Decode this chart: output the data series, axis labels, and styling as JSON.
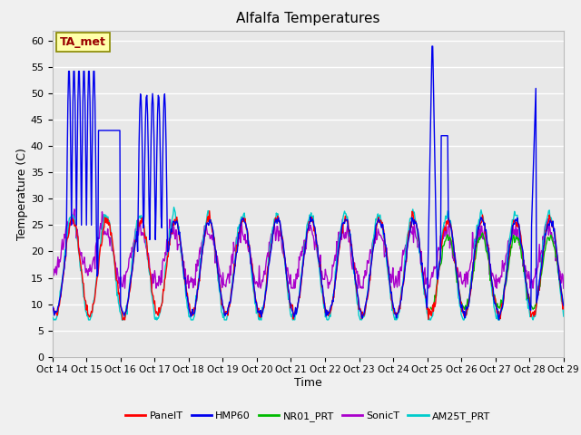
{
  "title": "Alfalfa Temperatures",
  "xlabel": "Time",
  "ylabel": "Temperature (C)",
  "ylim": [
    0,
    62
  ],
  "yticks": [
    0,
    5,
    10,
    15,
    20,
    25,
    30,
    35,
    40,
    45,
    50,
    55,
    60
  ],
  "xtick_labels": [
    "Oct 14",
    "Oct 15",
    "Oct 16",
    "Oct 17",
    "Oct 18",
    "Oct 19",
    "Oct 20",
    "Oct 21",
    "Oct 22",
    "Oct 23",
    "Oct 24",
    "Oct 25",
    "Oct 26",
    "Oct 27",
    "Oct 28",
    "Oct 29"
  ],
  "legend_labels": [
    "PanelT",
    "HMP60",
    "NR01_PRT",
    "SonicT",
    "AM25T_PRT"
  ],
  "legend_colors": [
    "#ff0000",
    "#0000ee",
    "#00bb00",
    "#aa00cc",
    "#00cccc"
  ],
  "annotation_text": "TA_met",
  "annotation_color": "#990000",
  "annotation_bg": "#ffffaa",
  "plot_bg": "#e8e8e8",
  "fig_bg": "#f0f0f0",
  "grid_color": "#ffffff",
  "line_width": 1.0
}
